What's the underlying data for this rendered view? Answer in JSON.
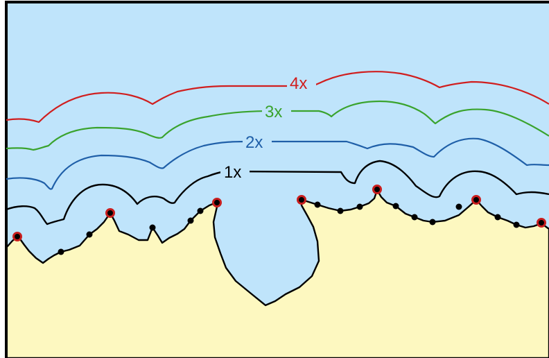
{
  "colors": {
    "water": "#bfe4fb",
    "land": "#fdf8c0",
    "frame": "#000000",
    "coastline": "#000000",
    "contour_1x": "#000000",
    "contour_2x": "#1f5fa8",
    "contour_3x": "#3aa32d",
    "contour_4x": "#d01e1e",
    "red_marker": "#c81e1e",
    "black_marker": "#000000"
  },
  "contours": [
    {
      "id": "1x",
      "label": "1x"
    },
    {
      "id": "2x",
      "label": "2x"
    },
    {
      "id": "3x",
      "label": "3x"
    },
    {
      "id": "4x",
      "label": "4x"
    }
  ]
}
